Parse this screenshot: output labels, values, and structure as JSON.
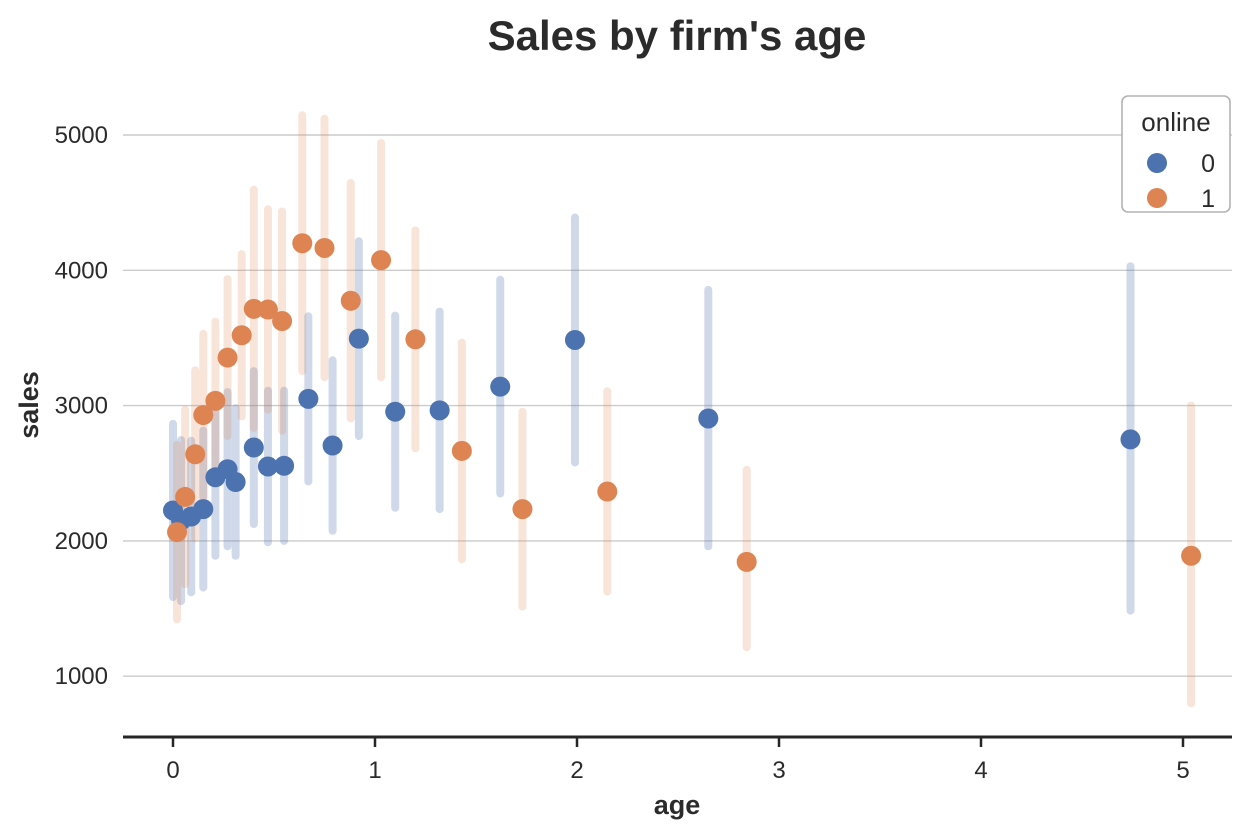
{
  "title": "Sales by firm's age",
  "axes": {
    "xlabel": "age",
    "ylabel": "sales",
    "x_tick_labels": [
      "0",
      "1",
      "2",
      "3",
      "4",
      "5"
    ],
    "y_tick_labels": [
      "1000",
      "2000",
      "3000",
      "4000",
      "5000"
    ]
  },
  "legend": {
    "title": "online",
    "entries": [
      {
        "label": "0",
        "color": "#4c72b0"
      },
      {
        "label": "1",
        "color": "#dd8452"
      }
    ]
  },
  "colors": {
    "blue_marker": "#4c72b0",
    "orange_marker": "#dd8452",
    "blue_errorbar": "rgba(76,114,176,0.27)",
    "orange_errorbar": "rgba(221,132,82,0.22)",
    "gridline": "#cccccc",
    "axis_line": "#262626",
    "text": "#2b2b2b",
    "legend_border": "#b3b3b3"
  },
  "chart_data": {
    "type": "scatter",
    "title": "Sales by firm's age",
    "xlabel": "age",
    "ylabel": "sales",
    "x_ticks": [
      0,
      1,
      2,
      3,
      4,
      5
    ],
    "y_ticks": [
      1000,
      2000,
      3000,
      4000,
      5000
    ],
    "xlim": [
      -0.25,
      5.25
    ],
    "ylim": [
      560,
      5330
    ],
    "grid": "horizontal-only",
    "legend_title": "online",
    "legend_position": "upper right",
    "marker": "circle-with-vertical-error-bar",
    "point_format": [
      "age",
      "sales",
      "err_low",
      "err_high"
    ],
    "series": [
      {
        "name": "0",
        "color": "#4c72b0",
        "points": [
          [
            0.0,
            2225,
            1585,
            2865
          ],
          [
            0.04,
            2150,
            1555,
            2745
          ],
          [
            0.09,
            2180,
            1620,
            2740
          ],
          [
            0.15,
            2235,
            1655,
            2815
          ],
          [
            0.21,
            2470,
            1890,
            3050
          ],
          [
            0.27,
            2530,
            1960,
            3100
          ],
          [
            0.31,
            2435,
            1890,
            2980
          ],
          [
            0.4,
            2690,
            2125,
            3255
          ],
          [
            0.47,
            2550,
            1990,
            3110
          ],
          [
            0.55,
            2555,
            2000,
            3110
          ],
          [
            0.67,
            3050,
            2440,
            3660
          ],
          [
            0.79,
            2705,
            2075,
            3335
          ],
          [
            0.92,
            3495,
            2775,
            4215
          ],
          [
            1.1,
            2955,
            2245,
            3665
          ],
          [
            1.32,
            2965,
            2235,
            3695
          ],
          [
            1.62,
            3140,
            2350,
            3930
          ],
          [
            1.99,
            3485,
            2580,
            4390
          ],
          [
            2.65,
            2905,
            1960,
            3855
          ],
          [
            4.74,
            2750,
            1485,
            4030
          ]
        ]
      },
      {
        "name": "1",
        "color": "#dd8452",
        "points": [
          [
            0.02,
            2065,
            1420,
            2710
          ],
          [
            0.06,
            2325,
            1680,
            2970
          ],
          [
            0.11,
            2640,
            2020,
            3260
          ],
          [
            0.15,
            2930,
            2330,
            3530
          ],
          [
            0.21,
            3035,
            2450,
            3620
          ],
          [
            0.27,
            3355,
            2775,
            3935
          ],
          [
            0.34,
            3520,
            2920,
            4120
          ],
          [
            0.4,
            3715,
            2835,
            4595
          ],
          [
            0.47,
            3710,
            2970,
            4450
          ],
          [
            0.54,
            3625,
            2815,
            4435
          ],
          [
            0.64,
            4200,
            3255,
            5145
          ],
          [
            0.75,
            4165,
            3210,
            5120
          ],
          [
            0.88,
            3775,
            2905,
            4645
          ],
          [
            1.03,
            4075,
            3210,
            4940
          ],
          [
            1.2,
            3490,
            2685,
            4295
          ],
          [
            1.43,
            2665,
            1865,
            3465
          ],
          [
            1.73,
            2235,
            1515,
            2955
          ],
          [
            2.15,
            2365,
            1625,
            3105
          ],
          [
            2.84,
            1845,
            1215,
            2525
          ],
          [
            5.04,
            1890,
            800,
            3000
          ]
        ]
      }
    ]
  }
}
